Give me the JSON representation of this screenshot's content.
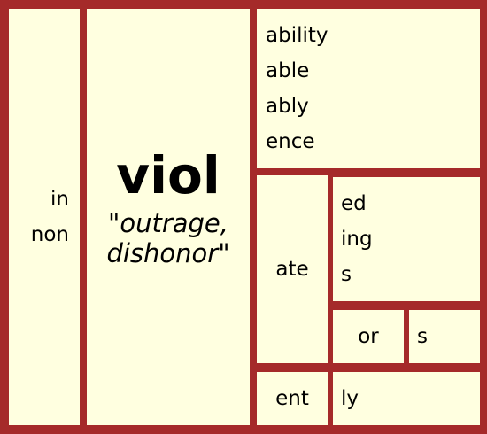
{
  "prefixes": [
    "in",
    "non"
  ],
  "root": {
    "word": "viol",
    "gloss_line1": "\"outrage,",
    "gloss_line2": "dishonor\""
  },
  "direct_suffixes": [
    "ability",
    "able",
    "ably",
    "ence"
  ],
  "ate_branch": {
    "stem": "ate",
    "suffixes": [
      "ed",
      "ing",
      "s"
    ],
    "or_branch": {
      "stem": "or",
      "suffixes": [
        "s"
      ]
    }
  },
  "ent_branch": {
    "stem": "ent",
    "suffixes": [
      "ly"
    ]
  },
  "colors": {
    "border": "#a52a2a",
    "cell_background": "#ffffe0"
  }
}
